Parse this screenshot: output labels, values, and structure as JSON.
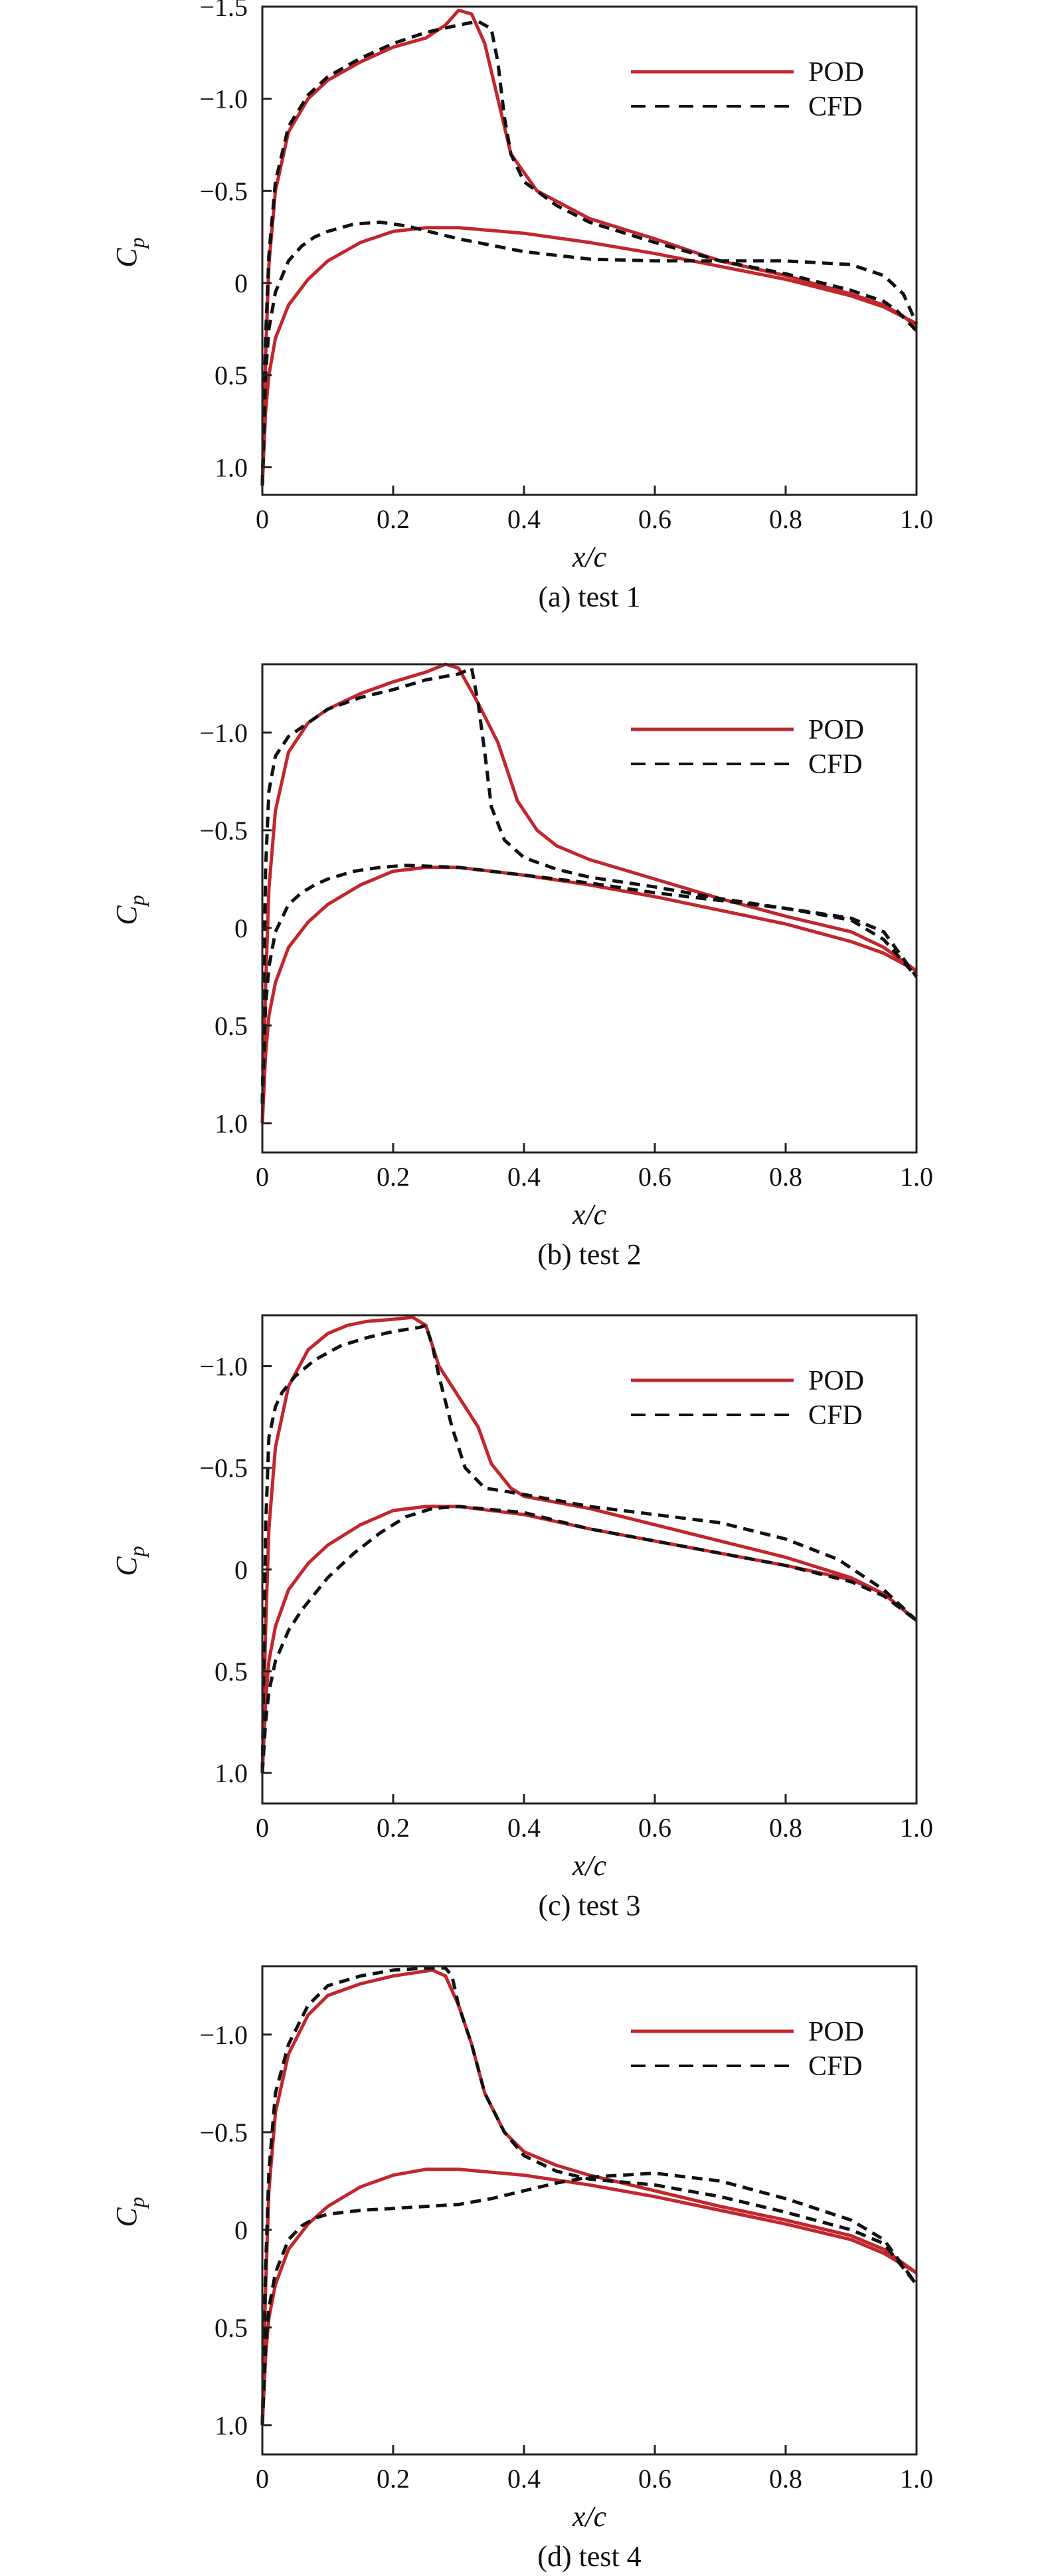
{
  "figure": {
    "colors": {
      "POD": "#c1272d",
      "CFD": "#111111",
      "axes": "#222222"
    },
    "legend_placement": "top-right"
  },
  "chart_data": [
    {
      "type": "line",
      "caption": "(a) test 1",
      "xlabel": "x/c",
      "ylabel": "Cp",
      "xlim": [
        0,
        1.0
      ],
      "ylim": [
        1.15,
        -1.5
      ],
      "y_inverted": true,
      "x_ticks": [
        0,
        0.2,
        0.4,
        0.6,
        0.8,
        1.0
      ],
      "x_tick_labels": [
        "0",
        "0.2",
        "0.4",
        "0.6",
        "0.8",
        "1.0"
      ],
      "y_ticks": [
        -1.5,
        -1.0,
        -0.5,
        0,
        0.5,
        1.0
      ],
      "y_tick_labels": [
        "−1.5",
        "−1.0",
        "−0.5",
        "0",
        "0.5",
        "1.0"
      ],
      "legend": [
        "POD",
        "CFD"
      ],
      "series": [
        {
          "name": "POD",
          "surface": "upper",
          "x": [
            0,
            0.005,
            0.01,
            0.02,
            0.04,
            0.07,
            0.1,
            0.15,
            0.2,
            0.25,
            0.28,
            0.3,
            0.32,
            0.34,
            0.36,
            0.38,
            0.42,
            0.5,
            0.6,
            0.7,
            0.8,
            0.9,
            0.95,
            0.98,
            1.0
          ],
          "y": [
            1.1,
            0.4,
            -0.1,
            -0.5,
            -0.82,
            -1.0,
            -1.1,
            -1.2,
            -1.28,
            -1.33,
            -1.4,
            -1.48,
            -1.46,
            -1.3,
            -1.0,
            -0.7,
            -0.5,
            -0.35,
            -0.24,
            -0.12,
            -0.04,
            0.06,
            0.12,
            0.18,
            0.24
          ]
        },
        {
          "name": "POD",
          "surface": "lower",
          "x": [
            0,
            0.005,
            0.01,
            0.02,
            0.04,
            0.07,
            0.1,
            0.15,
            0.2,
            0.25,
            0.3,
            0.4,
            0.5,
            0.6,
            0.7,
            0.8,
            0.9,
            0.95,
            1.0
          ],
          "y": [
            1.1,
            0.7,
            0.5,
            0.3,
            0.12,
            -0.02,
            -0.12,
            -0.22,
            -0.28,
            -0.3,
            -0.3,
            -0.27,
            -0.22,
            -0.16,
            -0.09,
            -0.02,
            0.07,
            0.13,
            0.22
          ]
        },
        {
          "name": "CFD",
          "surface": "upper",
          "x": [
            0,
            0.005,
            0.01,
            0.02,
            0.04,
            0.07,
            0.1,
            0.15,
            0.2,
            0.25,
            0.3,
            0.33,
            0.35,
            0.36,
            0.37,
            0.38,
            0.4,
            0.45,
            0.5,
            0.6,
            0.7,
            0.8,
            0.9,
            0.95,
            0.97,
            1.0
          ],
          "y": [
            1.1,
            0.3,
            -0.15,
            -0.55,
            -0.85,
            -1.02,
            -1.12,
            -1.22,
            -1.3,
            -1.36,
            -1.4,
            -1.42,
            -1.38,
            -1.2,
            -0.9,
            -0.7,
            -0.55,
            -0.42,
            -0.33,
            -0.22,
            -0.12,
            -0.05,
            0.04,
            0.1,
            0.15,
            0.26
          ]
        },
        {
          "name": "CFD",
          "surface": "lower",
          "x": [
            0,
            0.005,
            0.01,
            0.02,
            0.04,
            0.06,
            0.08,
            0.1,
            0.14,
            0.18,
            0.22,
            0.3,
            0.4,
            0.5,
            0.6,
            0.7,
            0.8,
            0.9,
            0.95,
            0.98,
            1.0
          ],
          "y": [
            1.1,
            0.5,
            0.25,
            0.05,
            -0.12,
            -0.2,
            -0.25,
            -0.28,
            -0.32,
            -0.33,
            -0.31,
            -0.24,
            -0.17,
            -0.13,
            -0.12,
            -0.12,
            -0.12,
            -0.1,
            -0.04,
            0.06,
            0.22
          ]
        }
      ]
    },
    {
      "type": "line",
      "caption": "(b) test 2",
      "xlabel": "x/c",
      "ylabel": "Cp",
      "xlim": [
        0,
        1.0
      ],
      "ylim": [
        1.15,
        -1.35
      ],
      "y_inverted": true,
      "x_ticks": [
        0,
        0.2,
        0.4,
        0.6,
        0.8,
        1.0
      ],
      "x_tick_labels": [
        "0",
        "0.2",
        "0.4",
        "0.6",
        "0.8",
        "1.0"
      ],
      "y_ticks": [
        -1.0,
        -0.5,
        0,
        0.5,
        1.0
      ],
      "y_tick_labels": [
        "−1.0",
        "−0.5",
        "0",
        "0.5",
        "1.0"
      ],
      "legend": [
        "POD",
        "CFD"
      ],
      "series": [
        {
          "name": "POD",
          "surface": "upper",
          "x": [
            0,
            0.005,
            0.01,
            0.02,
            0.04,
            0.07,
            0.1,
            0.15,
            0.2,
            0.25,
            0.28,
            0.3,
            0.33,
            0.36,
            0.39,
            0.42,
            0.45,
            0.5,
            0.6,
            0.7,
            0.8,
            0.9,
            0.95,
            1.0
          ],
          "y": [
            1.0,
            0.3,
            -0.2,
            -0.6,
            -0.9,
            -1.05,
            -1.12,
            -1.2,
            -1.26,
            -1.31,
            -1.35,
            -1.33,
            -1.15,
            -0.95,
            -0.65,
            -0.5,
            -0.42,
            -0.35,
            -0.25,
            -0.15,
            -0.06,
            0.02,
            0.1,
            0.22
          ]
        },
        {
          "name": "POD",
          "surface": "lower",
          "x": [
            0,
            0.005,
            0.01,
            0.02,
            0.04,
            0.07,
            0.1,
            0.15,
            0.2,
            0.25,
            0.3,
            0.4,
            0.5,
            0.6,
            0.7,
            0.8,
            0.9,
            0.95,
            1.0
          ],
          "y": [
            1.0,
            0.65,
            0.45,
            0.28,
            0.1,
            -0.03,
            -0.12,
            -0.22,
            -0.29,
            -0.31,
            -0.31,
            -0.27,
            -0.22,
            -0.16,
            -0.09,
            -0.02,
            0.07,
            0.13,
            0.22
          ]
        },
        {
          "name": "CFD",
          "surface": "upper",
          "x": [
            0,
            0.005,
            0.01,
            0.02,
            0.04,
            0.07,
            0.1,
            0.15,
            0.2,
            0.25,
            0.3,
            0.32,
            0.33,
            0.34,
            0.35,
            0.37,
            0.4,
            0.45,
            0.5,
            0.6,
            0.7,
            0.8,
            0.9,
            0.95,
            1.0
          ],
          "y": [
            0.9,
            -0.3,
            -0.7,
            -0.88,
            -0.98,
            -1.05,
            -1.12,
            -1.18,
            -1.22,
            -1.27,
            -1.3,
            -1.33,
            -1.15,
            -0.9,
            -0.62,
            -0.45,
            -0.36,
            -0.3,
            -0.26,
            -0.21,
            -0.15,
            -0.1,
            -0.04,
            0.06,
            0.25
          ]
        },
        {
          "name": "CFD",
          "surface": "lower",
          "x": [
            0,
            0.005,
            0.01,
            0.02,
            0.04,
            0.06,
            0.08,
            0.1,
            0.14,
            0.18,
            0.22,
            0.3,
            0.4,
            0.5,
            0.6,
            0.7,
            0.8,
            0.9,
            0.95,
            1.0
          ],
          "y": [
            0.9,
            0.4,
            0.2,
            0.02,
            -0.12,
            -0.18,
            -0.22,
            -0.25,
            -0.29,
            -0.31,
            -0.32,
            -0.31,
            -0.27,
            -0.23,
            -0.18,
            -0.14,
            -0.1,
            -0.05,
            0.02,
            0.25
          ]
        }
      ]
    },
    {
      "type": "line",
      "caption": "(c) test 3",
      "xlabel": "x/c",
      "ylabel": "Cp",
      "xlim": [
        0,
        1.0
      ],
      "ylim": [
        1.15,
        -1.25
      ],
      "y_inverted": true,
      "x_ticks": [
        0,
        0.2,
        0.4,
        0.6,
        0.8,
        1.0
      ],
      "x_tick_labels": [
        "0",
        "0.2",
        "0.4",
        "0.6",
        "0.8",
        "1.0"
      ],
      "y_ticks": [
        -1.0,
        -0.5,
        0,
        0.5,
        1.0
      ],
      "y_tick_labels": [
        "−1.0",
        "−0.5",
        "0",
        "0.5",
        "1.0"
      ],
      "legend": [
        "POD",
        "CFD"
      ],
      "series": [
        {
          "name": "POD",
          "surface": "upper",
          "x": [
            0,
            0.005,
            0.01,
            0.02,
            0.04,
            0.07,
            0.1,
            0.13,
            0.16,
            0.2,
            0.23,
            0.25,
            0.27,
            0.3,
            0.33,
            0.35,
            0.38,
            0.4,
            0.5,
            0.6,
            0.7,
            0.8,
            0.9,
            0.95,
            1.0
          ],
          "y": [
            1.0,
            0.3,
            -0.2,
            -0.6,
            -0.9,
            -1.08,
            -1.16,
            -1.2,
            -1.22,
            -1.23,
            -1.24,
            -1.2,
            -1.0,
            -0.85,
            -0.7,
            -0.52,
            -0.4,
            -0.36,
            -0.3,
            -0.22,
            -0.14,
            -0.06,
            0.04,
            0.12,
            0.25
          ]
        },
        {
          "name": "POD",
          "surface": "lower",
          "x": [
            0,
            0.005,
            0.01,
            0.02,
            0.04,
            0.07,
            0.1,
            0.15,
            0.2,
            0.25,
            0.3,
            0.4,
            0.5,
            0.6,
            0.7,
            0.8,
            0.9,
            0.95,
            1.0
          ],
          "y": [
            1.0,
            0.65,
            0.45,
            0.28,
            0.1,
            -0.03,
            -0.12,
            -0.22,
            -0.29,
            -0.31,
            -0.31,
            -0.27,
            -0.2,
            -0.14,
            -0.08,
            -0.02,
            0.05,
            0.12,
            0.25
          ]
        },
        {
          "name": "CFD",
          "surface": "upper",
          "x": [
            0,
            0.005,
            0.01,
            0.02,
            0.03,
            0.05,
            0.08,
            0.12,
            0.16,
            0.2,
            0.24,
            0.25,
            0.26,
            0.27,
            0.29,
            0.31,
            0.34,
            0.38,
            0.45,
            0.5,
            0.6,
            0.7,
            0.8,
            0.88,
            0.95,
            1.0
          ],
          "y": [
            1.0,
            -0.2,
            -0.65,
            -0.8,
            -0.87,
            -0.95,
            -1.03,
            -1.1,
            -1.14,
            -1.17,
            -1.19,
            -1.2,
            -1.1,
            -0.95,
            -0.7,
            -0.5,
            -0.4,
            -0.38,
            -0.34,
            -0.31,
            -0.27,
            -0.23,
            -0.15,
            -0.05,
            0.1,
            0.25
          ]
        },
        {
          "name": "CFD",
          "surface": "lower",
          "x": [
            0,
            0.005,
            0.01,
            0.02,
            0.04,
            0.06,
            0.08,
            0.1,
            0.14,
            0.18,
            0.22,
            0.26,
            0.3,
            0.4,
            0.5,
            0.6,
            0.7,
            0.8,
            0.9,
            0.95,
            1.0
          ],
          "y": [
            1.0,
            0.75,
            0.6,
            0.45,
            0.3,
            0.2,
            0.12,
            0.04,
            -0.08,
            -0.18,
            -0.26,
            -0.3,
            -0.31,
            -0.28,
            -0.2,
            -0.14,
            -0.08,
            -0.02,
            0.06,
            0.13,
            0.25
          ]
        }
      ]
    },
    {
      "type": "line",
      "caption": "(d) test 4",
      "xlabel": "x/c",
      "ylabel": "Cp",
      "xlim": [
        0,
        1.0
      ],
      "ylim": [
        1.15,
        -1.35
      ],
      "y_inverted": true,
      "x_ticks": [
        0,
        0.2,
        0.4,
        0.6,
        0.8,
        1.0
      ],
      "x_tick_labels": [
        "0",
        "0.2",
        "0.4",
        "0.6",
        "0.8",
        "1.0"
      ],
      "y_ticks": [
        -1.0,
        -0.5,
        0,
        0.5,
        1.0
      ],
      "y_tick_labels": [
        "−1.0",
        "−0.5",
        "0",
        "0.5",
        "1.0"
      ],
      "legend": [
        "POD",
        "CFD"
      ],
      "series": [
        {
          "name": "POD",
          "surface": "upper",
          "x": [
            0,
            0.005,
            0.01,
            0.02,
            0.04,
            0.07,
            0.1,
            0.15,
            0.2,
            0.24,
            0.26,
            0.28,
            0.3,
            0.32,
            0.34,
            0.37,
            0.4,
            0.45,
            0.5,
            0.6,
            0.7,
            0.8,
            0.9,
            0.95,
            1.0
          ],
          "y": [
            1.0,
            0.3,
            -0.2,
            -0.6,
            -0.9,
            -1.1,
            -1.2,
            -1.26,
            -1.3,
            -1.32,
            -1.33,
            -1.3,
            -1.15,
            -0.95,
            -0.7,
            -0.5,
            -0.4,
            -0.33,
            -0.28,
            -0.2,
            -0.12,
            -0.05,
            0.03,
            0.1,
            0.22
          ]
        },
        {
          "name": "POD",
          "surface": "lower",
          "x": [
            0,
            0.005,
            0.01,
            0.02,
            0.04,
            0.07,
            0.1,
            0.15,
            0.2,
            0.25,
            0.3,
            0.4,
            0.5,
            0.6,
            0.7,
            0.8,
            0.9,
            0.95,
            1.0
          ],
          "y": [
            1.0,
            0.65,
            0.45,
            0.28,
            0.1,
            -0.03,
            -0.12,
            -0.22,
            -0.28,
            -0.31,
            -0.31,
            -0.28,
            -0.23,
            -0.17,
            -0.1,
            -0.03,
            0.05,
            0.12,
            0.22
          ]
        },
        {
          "name": "CFD",
          "surface": "upper",
          "x": [
            0,
            0.005,
            0.01,
            0.02,
            0.04,
            0.07,
            0.1,
            0.15,
            0.2,
            0.25,
            0.28,
            0.29,
            0.3,
            0.32,
            0.34,
            0.37,
            0.4,
            0.45,
            0.5,
            0.6,
            0.7,
            0.8,
            0.9,
            0.95,
            1.0
          ],
          "y": [
            1.0,
            0.2,
            -0.3,
            -0.7,
            -0.95,
            -1.15,
            -1.25,
            -1.3,
            -1.33,
            -1.34,
            -1.34,
            -1.3,
            -1.15,
            -0.95,
            -0.7,
            -0.5,
            -0.38,
            -0.3,
            -0.26,
            -0.23,
            -0.17,
            -0.09,
            0.0,
            0.07,
            0.28
          ]
        },
        {
          "name": "CFD",
          "surface": "lower",
          "x": [
            0,
            0.005,
            0.01,
            0.02,
            0.04,
            0.06,
            0.08,
            0.1,
            0.15,
            0.2,
            0.25,
            0.3,
            0.35,
            0.4,
            0.45,
            0.5,
            0.55,
            0.6,
            0.7,
            0.8,
            0.9,
            0.95,
            1.0
          ],
          "y": [
            1.0,
            0.6,
            0.4,
            0.22,
            0.05,
            -0.02,
            -0.06,
            -0.08,
            -0.1,
            -0.11,
            -0.12,
            -0.13,
            -0.16,
            -0.2,
            -0.24,
            -0.27,
            -0.28,
            -0.29,
            -0.25,
            -0.16,
            -0.05,
            0.05,
            0.28
          ]
        }
      ]
    }
  ]
}
